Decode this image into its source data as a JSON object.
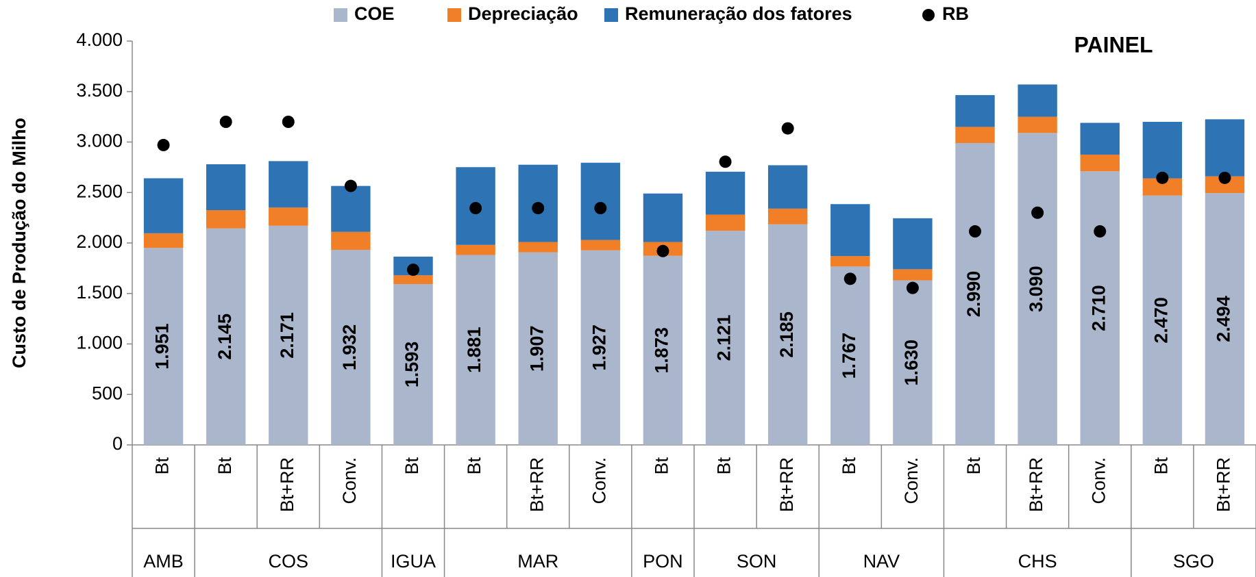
{
  "chart_data": {
    "type": "bar",
    "stacked": true,
    "title": "PAINEL",
    "y_label": "Custo de Produção do Milho",
    "groups": [
      {
        "name": "AMB",
        "categories": [
          "Bt"
        ]
      },
      {
        "name": "COS",
        "categories": [
          "Bt",
          "Bt+RR",
          "Conv."
        ]
      },
      {
        "name": "IGUA",
        "categories": [
          "Bt"
        ]
      },
      {
        "name": "MAR",
        "categories": [
          "Bt",
          "Bt+RR",
          "Conv."
        ]
      },
      {
        "name": "PON",
        "categories": [
          "Bt"
        ]
      },
      {
        "name": "SON",
        "categories": [
          "Bt",
          "Bt+RR"
        ]
      },
      {
        "name": "NAV",
        "categories": [
          "Bt",
          "Conv."
        ]
      },
      {
        "name": "CHS",
        "categories": [
          "Bt",
          "Bt+RR",
          "Conv."
        ]
      },
      {
        "name": "SGO",
        "categories": [
          "Bt",
          "Bt+RR"
        ]
      }
    ],
    "series": [
      {
        "name": "COE",
        "color": "#a9b6cb",
        "values": [
          1951,
          2145,
          2171,
          1932,
          1593,
          1881,
          1907,
          1927,
          1873,
          2121,
          2185,
          1767,
          1630,
          2990,
          3090,
          2710,
          2470,
          2494
        ],
        "value_labels": [
          "1.951",
          "2.145",
          "2.171",
          "1.932",
          "1.593",
          "1.881",
          "1.907",
          "1.927",
          "1.873",
          "2.121",
          "2.185",
          "1.767",
          "1.630",
          "2.990",
          "3.090",
          "2.710",
          "2.470",
          "2.494"
        ]
      },
      {
        "name": "Depreciação",
        "color": "#f07f28",
        "values": [
          145,
          180,
          180,
          178,
          87,
          100,
          103,
          103,
          137,
          160,
          155,
          103,
          110,
          160,
          160,
          165,
          170,
          166
        ]
      },
      {
        "name": "Remuneração dos fatores",
        "color": "#2e74b5",
        "values": [
          545,
          455,
          460,
          455,
          185,
          770,
          765,
          765,
          480,
          425,
          430,
          515,
          505,
          315,
          320,
          315,
          560,
          565
        ]
      },
      {
        "name": "RB",
        "type": "scatter",
        "color": "#000000",
        "values": [
          2970,
          3200,
          3200,
          2565,
          1735,
          2345,
          2345,
          2345,
          1920,
          2805,
          3135,
          1645,
          1555,
          2115,
          2300,
          2115,
          2645,
          2645
        ]
      }
    ],
    "ylim": [
      0,
      4000
    ],
    "yticks": [
      0,
      500,
      {
        "value": 1000,
        "label": "1.000"
      },
      {
        "value": 1500,
        "label": "1.500"
      },
      {
        "value": 2000,
        "label": "2.000"
      },
      {
        "value": 2500,
        "label": "2.500"
      },
      {
        "value": 3000,
        "label": "3.000"
      },
      {
        "value": 3500,
        "label": "3.500"
      },
      {
        "value": 4000,
        "label": "4.000"
      }
    ],
    "legend": "top",
    "grid": false
  }
}
